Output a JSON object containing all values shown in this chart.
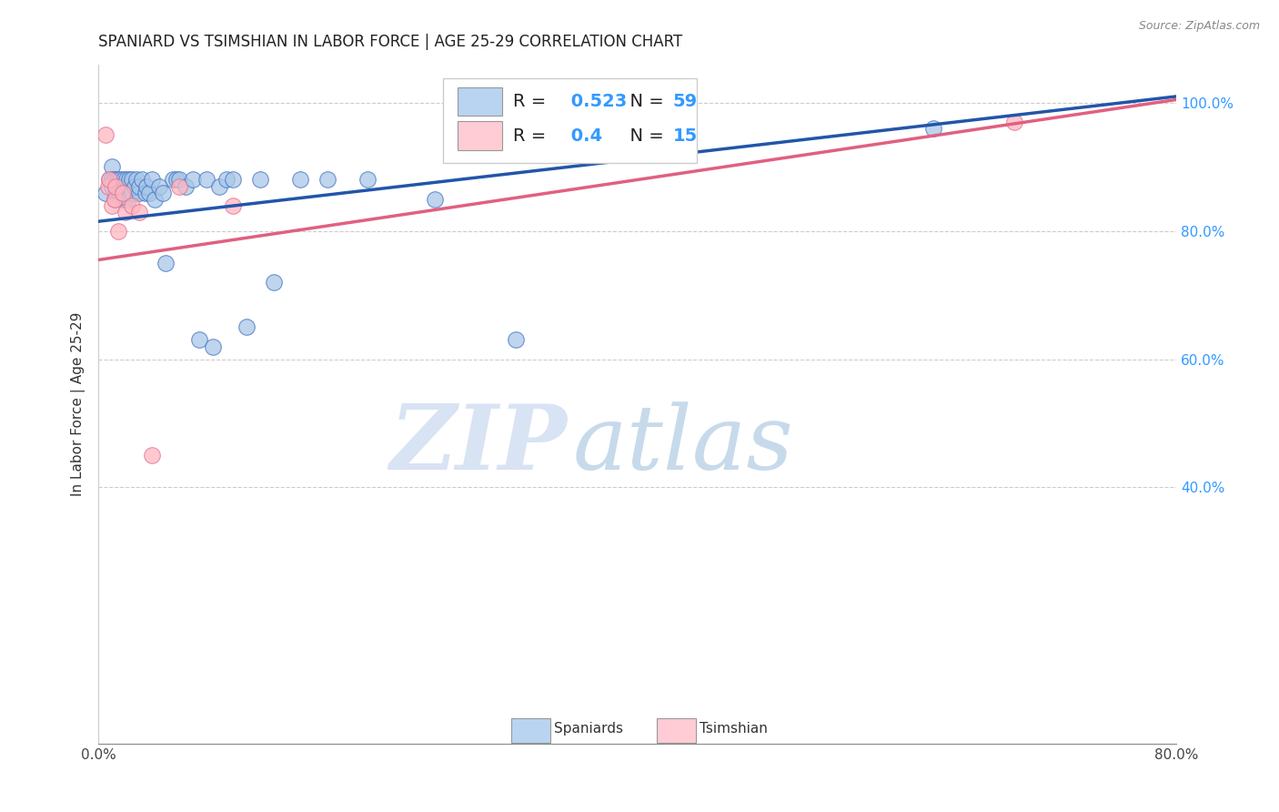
{
  "title": "SPANIARD VS TSIMSHIAN IN LABOR FORCE | AGE 25-29 CORRELATION CHART",
  "source": "Source: ZipAtlas.com",
  "ylabel": "In Labor Force | Age 25-29",
  "watermark_zip": "ZIP",
  "watermark_atlas": "atlas",
  "xlim": [
    0.0,
    0.8
  ],
  "ylim": [
    0.0,
    1.06
  ],
  "xtick_vals": [
    0.0,
    0.8
  ],
  "xtick_labels": [
    "0.0%",
    "80.0%"
  ],
  "ytick_positions": [
    0.4,
    0.6,
    0.8,
    1.0
  ],
  "ytick_labels": [
    "40.0%",
    "60.0%",
    "80.0%",
    "100.0%"
  ],
  "spaniard_color": "#a8c8e8",
  "spaniard_edge_color": "#4472c4",
  "tsimshian_color": "#ffb6c1",
  "tsimshian_edge_color": "#e07090",
  "spaniard_line_color": "#2255aa",
  "tsimshian_line_color": "#e06080",
  "spaniard_R": 0.523,
  "spaniard_N": 59,
  "tsimshian_R": 0.4,
  "tsimshian_N": 15,
  "legend_sp_fill": "#b8d4f0",
  "legend_ts_fill": "#ffccd5",
  "grid_color": "#cccccc",
  "title_fontsize": 12,
  "source_fontsize": 9,
  "tick_fontsize": 11,
  "ylabel_fontsize": 11,
  "legend_fontsize": 14,
  "spaniard_scatter_x": [
    0.005,
    0.008,
    0.01,
    0.01,
    0.01,
    0.012,
    0.012,
    0.013,
    0.013,
    0.014,
    0.015,
    0.015,
    0.016,
    0.016,
    0.017,
    0.018,
    0.018,
    0.019,
    0.02,
    0.02,
    0.021,
    0.022,
    0.022,
    0.023,
    0.025,
    0.025,
    0.027,
    0.028,
    0.03,
    0.03,
    0.032,
    0.035,
    0.036,
    0.038,
    0.04,
    0.042,
    0.045,
    0.048,
    0.05,
    0.055,
    0.058,
    0.06,
    0.065,
    0.07,
    0.075,
    0.08,
    0.085,
    0.09,
    0.095,
    0.1,
    0.11,
    0.12,
    0.13,
    0.15,
    0.17,
    0.2,
    0.25,
    0.31,
    0.62
  ],
  "spaniard_scatter_y": [
    0.86,
    0.88,
    0.9,
    0.87,
    0.88,
    0.85,
    0.88,
    0.87,
    0.86,
    0.88,
    0.87,
    0.86,
    0.88,
    0.86,
    0.87,
    0.85,
    0.87,
    0.88,
    0.86,
    0.85,
    0.88,
    0.85,
    0.87,
    0.88,
    0.86,
    0.88,
    0.87,
    0.88,
    0.86,
    0.87,
    0.88,
    0.86,
    0.87,
    0.86,
    0.88,
    0.85,
    0.87,
    0.86,
    0.75,
    0.88,
    0.88,
    0.88,
    0.87,
    0.88,
    0.63,
    0.88,
    0.62,
    0.87,
    0.88,
    0.88,
    0.65,
    0.88,
    0.72,
    0.88,
    0.88,
    0.88,
    0.85,
    0.63,
    0.96
  ],
  "tsimshian_scatter_x": [
    0.005,
    0.007,
    0.008,
    0.01,
    0.012,
    0.013,
    0.015,
    0.018,
    0.02,
    0.025,
    0.03,
    0.04,
    0.06,
    0.1,
    0.68
  ],
  "tsimshian_scatter_y": [
    0.95,
    0.87,
    0.88,
    0.84,
    0.85,
    0.87,
    0.8,
    0.86,
    0.83,
    0.84,
    0.83,
    0.45,
    0.87,
    0.84,
    0.97
  ],
  "sp_line_x0": 0.0,
  "sp_line_y0": 0.815,
  "sp_line_x1": 0.8,
  "sp_line_y1": 1.01,
  "ts_line_x0": 0.0,
  "ts_line_y0": 0.755,
  "ts_line_x1": 0.8,
  "ts_line_y1": 1.005
}
